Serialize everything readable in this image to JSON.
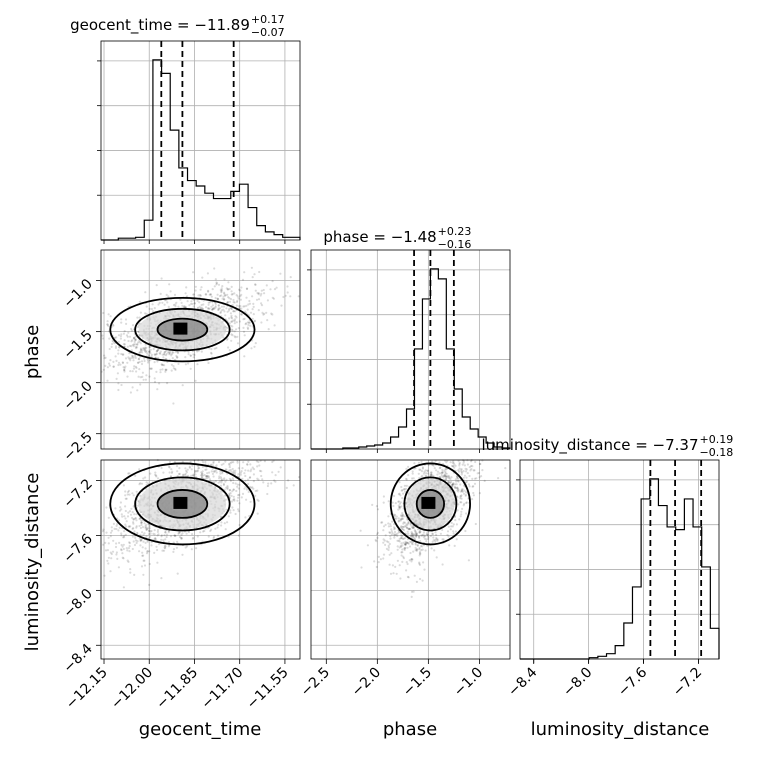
{
  "chart_data": {
    "type": "corner",
    "parameters": [
      "geocent_time",
      "phase",
      "luminosity_distance"
    ],
    "axis_labels": {
      "x": [
        "geocent_time",
        "phase",
        "luminosity_distance"
      ],
      "y": [
        "phase",
        "luminosity_distance"
      ]
    },
    "ranges": {
      "geocent_time": [
        -12.16,
        -11.5
      ],
      "phase": [
        -2.65,
        -0.7
      ],
      "luminosity_distance": [
        -8.5,
        -7.05
      ]
    },
    "ticks": {
      "geocent_time": {
        "values": [
          -12.15,
          -12.0,
          -11.85,
          -11.7,
          -11.55
        ],
        "labels": [
          "−12.15",
          "−12.00",
          "−11.85",
          "−11.70",
          "−11.55"
        ]
      },
      "phase": {
        "values": [
          -2.5,
          -2.0,
          -1.5,
          -1.0
        ],
        "labels": [
          "−2.5",
          "−2.0",
          "−1.5",
          "−1.0"
        ]
      },
      "luminosity_distance": {
        "values": [
          -8.4,
          -8.0,
          -7.6,
          -7.2
        ],
        "labels": [
          "−8.4",
          "−8.0",
          "−7.6",
          "−7.2"
        ]
      }
    },
    "titles": [
      {
        "param": "geocent_time",
        "prefix": "geocent_time = −11.89",
        "plus": "+0.17",
        "minus": "−0.07"
      },
      {
        "param": "phase",
        "prefix": "phase = −1.48",
        "plus": "+0.23",
        "minus": "−0.16"
      },
      {
        "param": "luminosity_distance",
        "prefix": "luminosity_distance = −7.37",
        "plus": "+0.19",
        "minus": "−0.18"
      }
    ],
    "quantiles": {
      "geocent_time": [
        -11.96,
        -11.89,
        -11.72
      ],
      "phase": [
        -1.64,
        -1.48,
        -1.25
      ],
      "luminosity_distance": [
        -7.55,
        -7.37,
        -7.18
      ]
    },
    "histograms": {
      "geocent_time": [
        0,
        0,
        2,
        2,
        3,
        22,
        200,
        185,
        122,
        80,
        66,
        60,
        52,
        46,
        46,
        54,
        62,
        36,
        16,
        9,
        6,
        3,
        3
      ],
      "phase": [
        0,
        0,
        0,
        0,
        1,
        1,
        2,
        3,
        4,
        6,
        12,
        22,
        40,
        100,
        150,
        180,
        170,
        100,
        60,
        32,
        20,
        12,
        6,
        2,
        1
      ],
      "luminosity_distance": [
        0,
        0,
        0,
        0,
        0,
        0,
        0,
        0,
        1,
        2,
        4,
        10,
        27,
        54,
        120,
        135,
        115,
        99,
        97,
        120,
        99,
        69,
        23
      ]
    },
    "scatter_style": {
      "point_color": "#000000",
      "contour_color": "#000000",
      "line_color": "#000000"
    },
    "grid": true
  }
}
